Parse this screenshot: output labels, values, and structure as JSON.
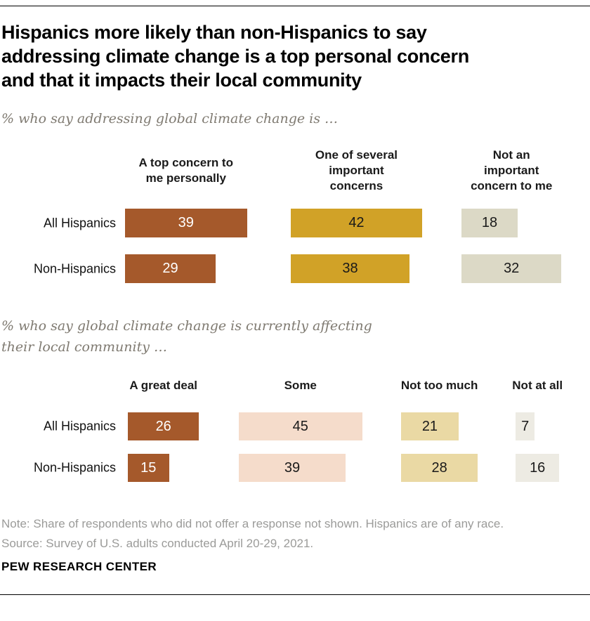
{
  "header": {
    "title": "Hispanics more likely than non-Hispanics to say addressing climate change is a top personal concern and that it impacts their local community"
  },
  "chart_data": [
    {
      "type": "bar",
      "orientation": "horizontal",
      "subtitle": "% who say addressing global climate change is …",
      "categories": [
        "All Hispanics",
        "Non-Hispanics"
      ],
      "series": [
        {
          "name": "A top concern to me personally",
          "values": [
            39,
            29
          ],
          "color": "#a5592b",
          "label_color": "#ffffff"
        },
        {
          "name": "One of several important concerns",
          "values": [
            42,
            38
          ],
          "color": "#d1a227",
          "label_color": "#1a1a1a"
        },
        {
          "name": "Not an important concern to me",
          "values": [
            18,
            32
          ],
          "color": "#dcd9c6",
          "label_color": "#1a1a1a"
        }
      ],
      "value_unit": "percent",
      "value_labels": "inside-center",
      "axes": "none",
      "grid": false,
      "legend": "column-headers"
    },
    {
      "type": "bar",
      "orientation": "horizontal",
      "subtitle": "% who say global climate change is currently affecting their local community …",
      "categories": [
        "All Hispanics",
        "Non-Hispanics"
      ],
      "series": [
        {
          "name": "A great deal",
          "values": [
            26,
            15
          ],
          "color": "#a5592b",
          "label_color": "#ffffff"
        },
        {
          "name": "Some",
          "values": [
            45,
            39
          ],
          "color": "#f5dccb",
          "label_color": "#1a1a1a"
        },
        {
          "name": "Not too much",
          "values": [
            21,
            28
          ],
          "color": "#ead9a4",
          "label_color": "#1a1a1a"
        },
        {
          "name": "Not at all",
          "values": [
            7,
            16
          ],
          "color": "#edebe3",
          "label_color": "#1a1a1a"
        }
      ],
      "value_unit": "percent",
      "value_labels": "inside-center",
      "axes": "none",
      "grid": false,
      "legend": "column-headers"
    }
  ],
  "footer": {
    "note": "Note: Share of respondents who did not offer a response not shown. Hispanics are of any race.",
    "source": "Source: Survey of U.S. adults conducted April 20-29, 2021.",
    "brand": "PEW RESEARCH CENTER"
  },
  "colors": {
    "bar_brown": "#a5592b",
    "bar_gold": "#d1a227",
    "bar_beige": "#dcd9c6",
    "bar_peach": "#f5dccb",
    "bar_tan": "#ead9a4",
    "bar_lightgray": "#edebe3",
    "subtitle_gray": "#7f7a71",
    "note_gray": "#9b9b99",
    "rule": "#000000"
  }
}
